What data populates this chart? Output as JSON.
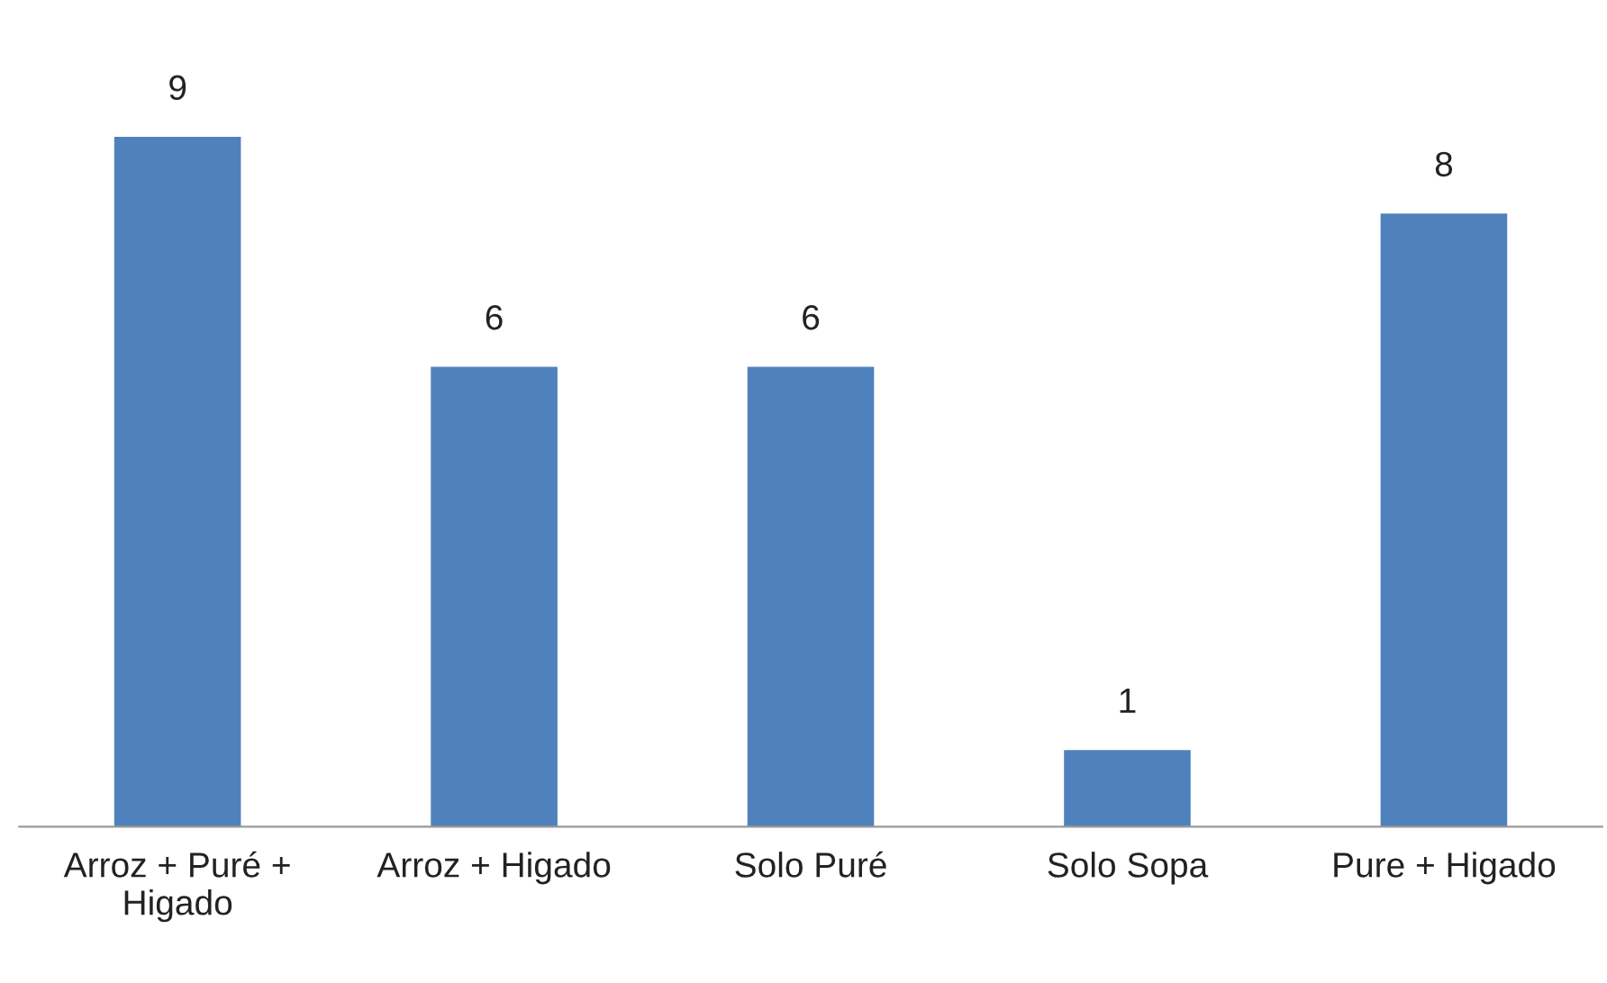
{
  "chart_data": {
    "type": "bar",
    "categories": [
      "Arroz + Puré +\nHigado",
      "Arroz + Higado",
      "Solo Puré",
      "Solo Sopa",
      "Pure + Higado"
    ],
    "values": [
      9,
      6,
      6,
      1,
      8
    ],
    "color": "#4f81bd",
    "data_labels": true,
    "grid": false,
    "legend": false
  }
}
